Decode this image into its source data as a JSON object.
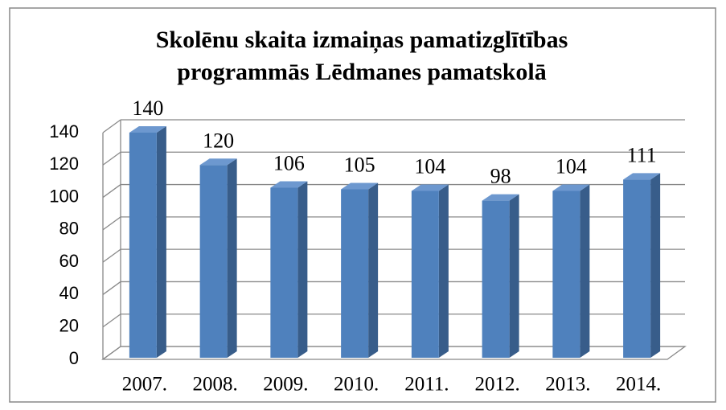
{
  "chart_data": {
    "type": "bar3d",
    "title": "Skolēnu skaita izmaiņas pamatizglītības programmās Lēdmanes pamatskolā",
    "title_lines": [
      "Skolēnu skaita izmaiņas pamatizglītības",
      "programmās Lēdmanes pamatskolā"
    ],
    "categories": [
      "2007.",
      "2008.",
      "2009.",
      "2010.",
      "2011.",
      "2012.",
      "2013.",
      "2014."
    ],
    "values": [
      140,
      120,
      106,
      105,
      104,
      98,
      104,
      111
    ],
    "color": "#4f81bd",
    "ylim": [
      0,
      140
    ],
    "yticks": [
      0,
      20,
      40,
      60,
      80,
      100,
      120,
      140
    ],
    "grid": true
  }
}
